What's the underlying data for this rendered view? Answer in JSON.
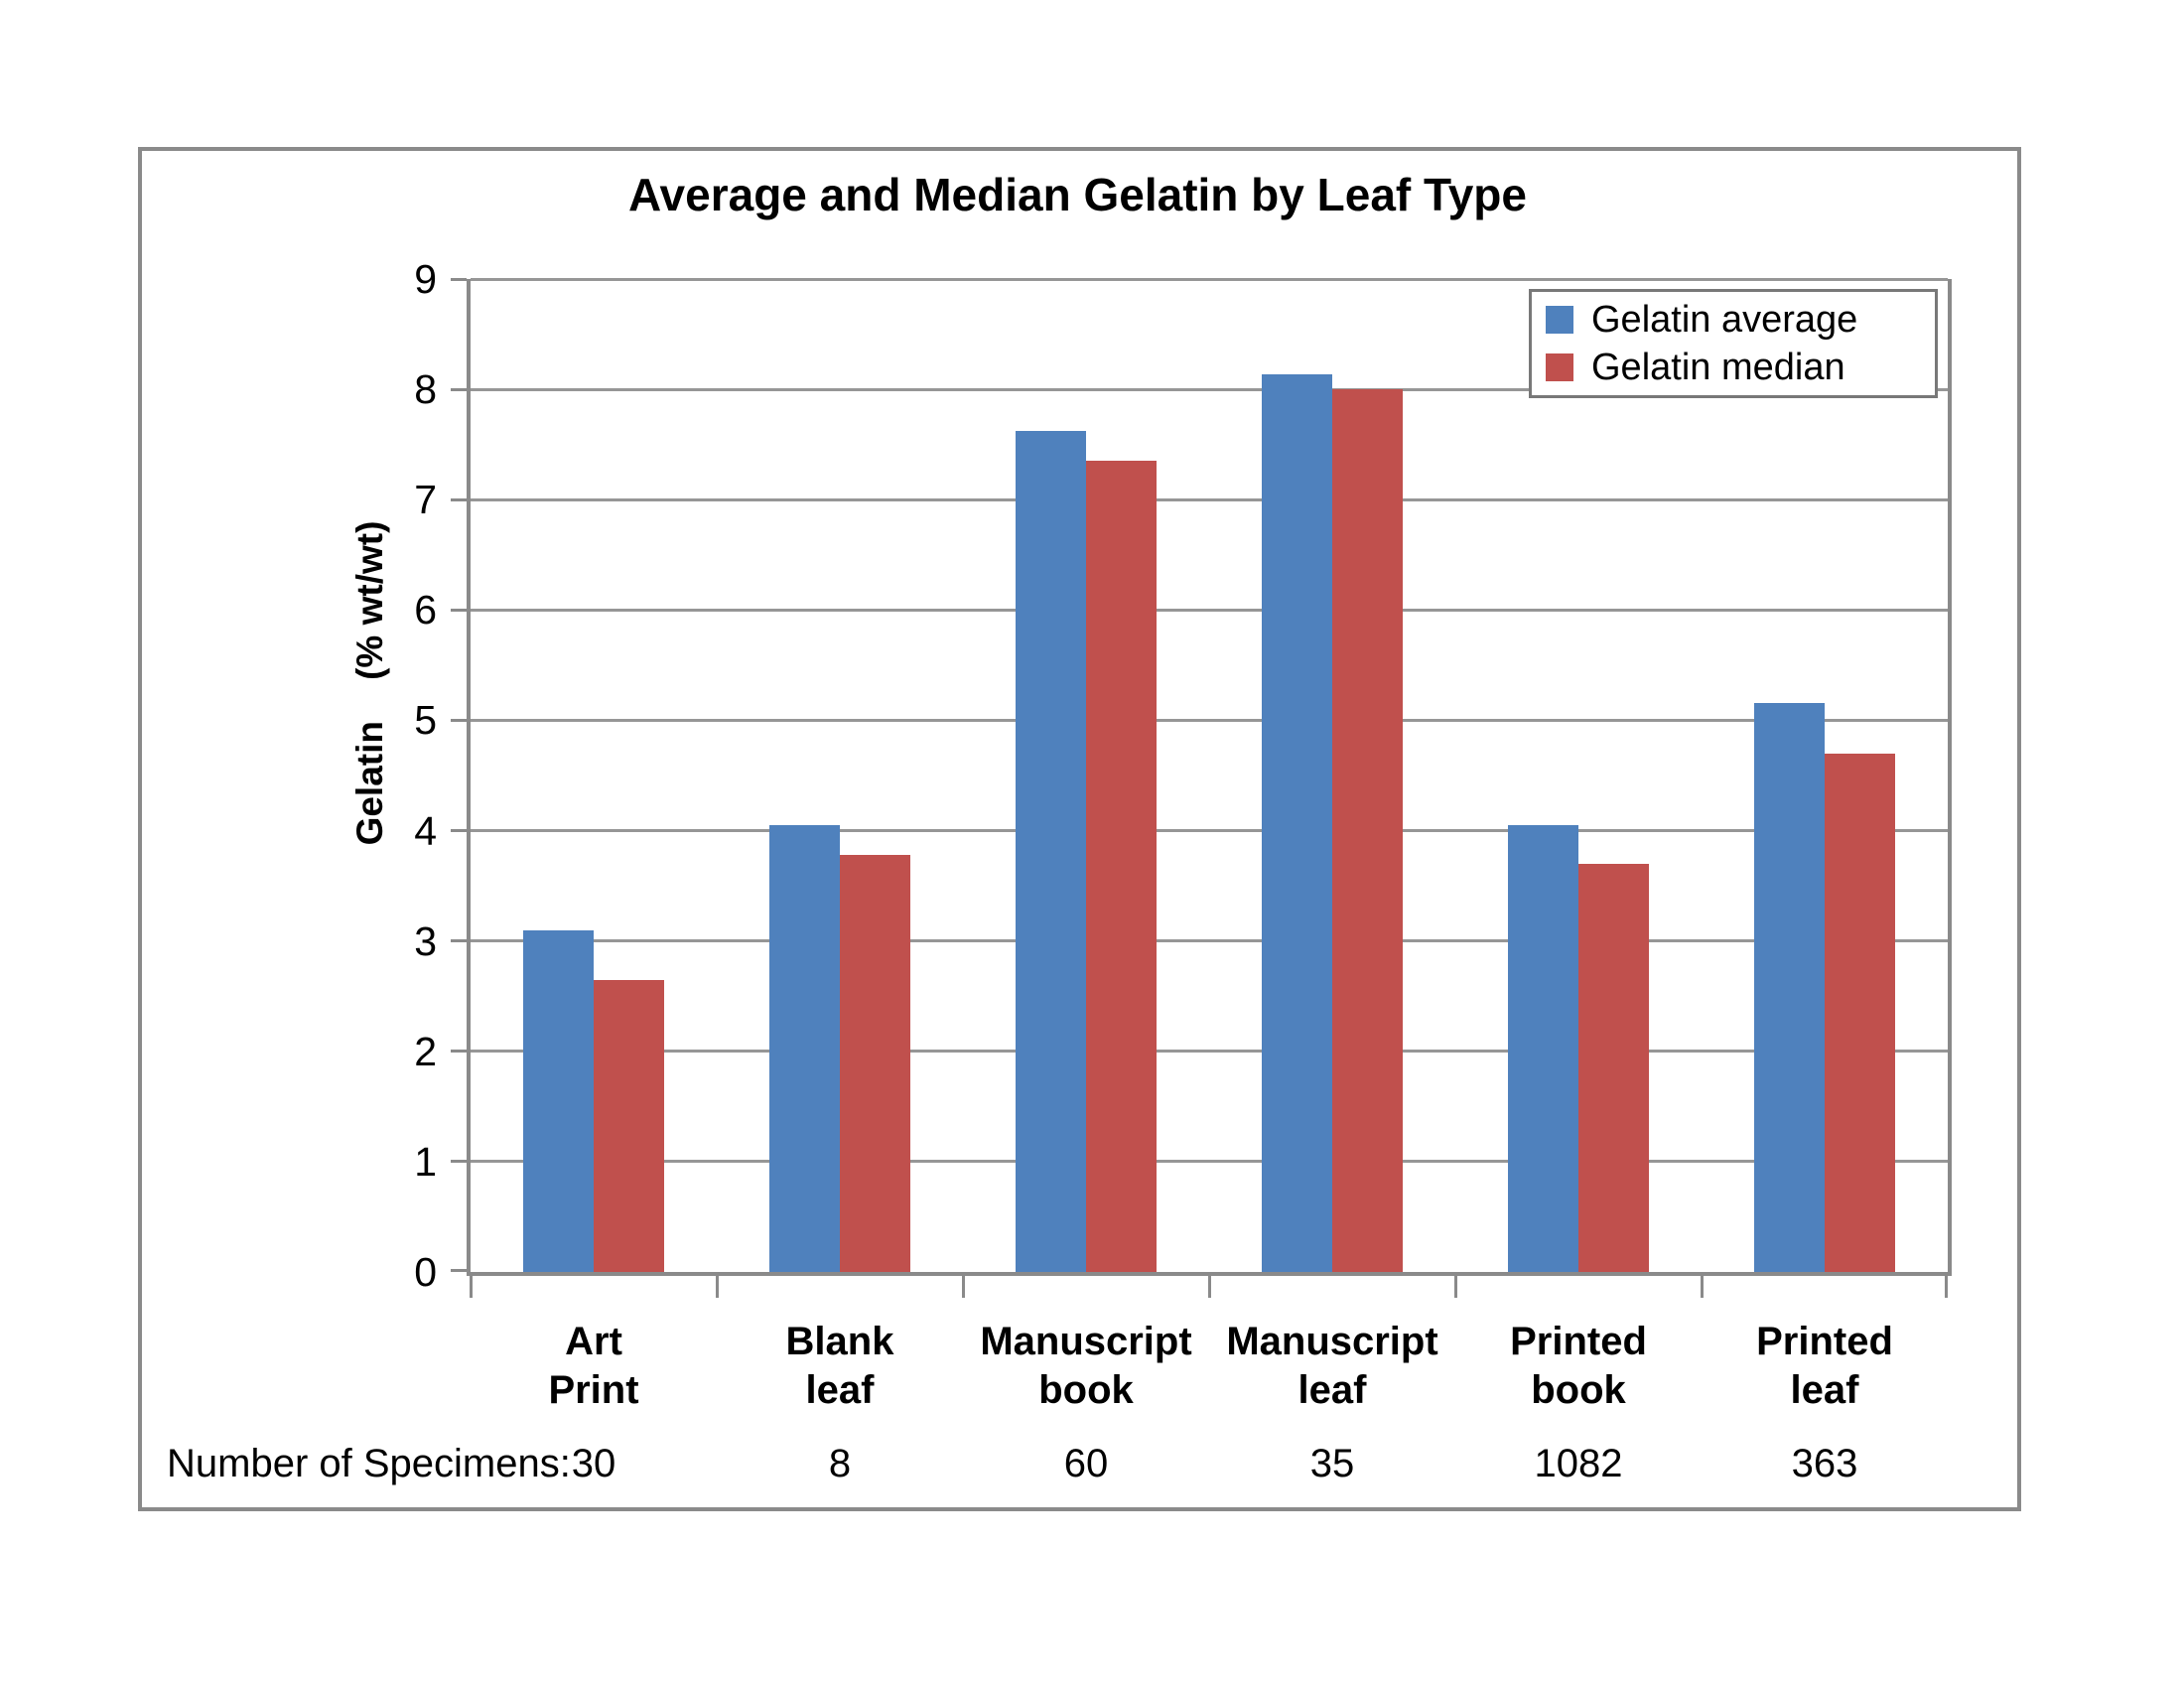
{
  "chart_data": {
    "type": "bar",
    "title": "Average and Median Gelatin by Leaf Type",
    "ylabel": "Gelatin    (% wt/wt)",
    "ylim": [
      0,
      9
    ],
    "ytick_step": 1,
    "grid": true,
    "legend_position": "top-right-inside",
    "categories": [
      "Art Print",
      "Blank leaf",
      "Manuscript book",
      "Manuscript leaf",
      "Printed book",
      "Printed leaf"
    ],
    "category_label_lines": [
      [
        "Art",
        "Print"
      ],
      [
        "Blank",
        "leaf"
      ],
      [
        "Manuscript",
        "book"
      ],
      [
        "Manuscript",
        "leaf"
      ],
      [
        "Printed",
        "book"
      ],
      [
        "Printed",
        "leaf"
      ]
    ],
    "series": [
      {
        "name": "Gelatin average",
        "color": "#4f81bd",
        "values": [
          3.1,
          4.05,
          7.62,
          8.14,
          4.05,
          5.16
        ]
      },
      {
        "name": "Gelatin median",
        "color": "#c0504d",
        "values": [
          2.65,
          3.78,
          7.35,
          8.0,
          3.7,
          4.7
        ]
      }
    ],
    "specimens_label": "Number of Specimens:",
    "specimens": [
      "30",
      "8",
      "60",
      "35",
      "1082",
      "363"
    ]
  },
  "colors": {
    "bar_average": "#4f81bd",
    "bar_median": "#c0504d",
    "gridline": "#969696",
    "axis": "#8a8a8a",
    "frame_border": "#8a8a8a",
    "legend_border": "#787878",
    "text": "#000000",
    "background": "#ffffff"
  }
}
